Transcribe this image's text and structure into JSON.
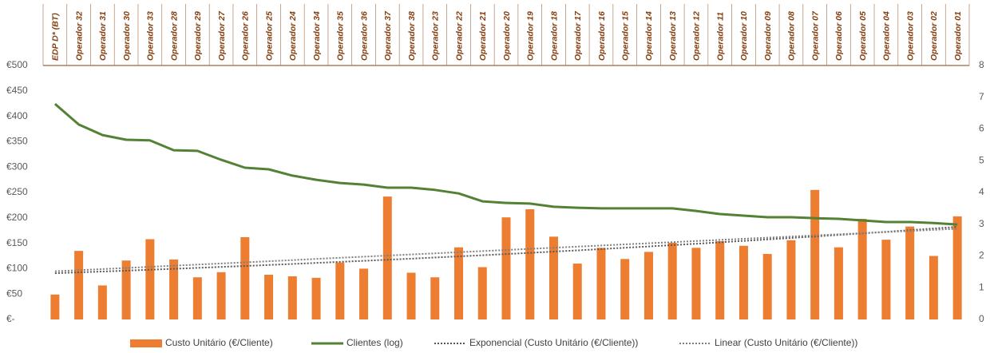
{
  "chart_data": {
    "type": "bar-line",
    "categories": [
      "EDP D* (BT)",
      "Operador 32",
      "Operador 31",
      "Operador 30",
      "Operador 33",
      "Operador 28",
      "Operador 29",
      "Operador 27",
      "Operador 26",
      "Operador 25",
      "Operador 24",
      "Operador 34",
      "Operador 35",
      "Operador 36",
      "Operador 37",
      "Operador 38",
      "Operador 23",
      "Operador 22",
      "Operador 21",
      "Operador 20",
      "Operador 19",
      "Operador 18",
      "Operador 17",
      "Operador 16",
      "Operador 15",
      "Operador 14",
      "Operador 13",
      "Operador 12",
      "Operador 11",
      "Operador 10",
      "Operador 09",
      "Operador 08",
      "Operador 07",
      "Operador 06",
      "Operador 05",
      "Operador 04",
      "Operador 03",
      "Operador 02",
      "Operador 01"
    ],
    "series": [
      {
        "name": "Custo Unitário (€/Cliente)",
        "type": "bar",
        "color": "#ed7d31",
        "values": [
          49,
          135,
          67,
          116,
          158,
          118,
          83,
          93,
          162,
          88,
          85,
          82,
          112,
          100,
          242,
          92,
          83,
          142,
          103,
          201,
          217,
          163,
          110,
          141,
          119,
          133,
          151,
          141,
          154,
          145,
          129,
          156,
          255,
          142,
          198,
          157,
          183,
          125,
          203
        ]
      },
      {
        "name": "Clientes (log)",
        "type": "line",
        "axis": "y2",
        "color": "#548235",
        "values": [
          6.79,
          6.14,
          5.81,
          5.66,
          5.64,
          5.33,
          5.31,
          5.03,
          4.78,
          4.73,
          4.53,
          4.4,
          4.3,
          4.25,
          4.15,
          4.15,
          4.08,
          3.97,
          3.72,
          3.67,
          3.65,
          3.55,
          3.52,
          3.5,
          3.5,
          3.5,
          3.5,
          3.42,
          3.32,
          3.27,
          3.22,
          3.22,
          3.19,
          3.17,
          3.12,
          3.07,
          3.07,
          3.04,
          2.99
        ]
      }
    ],
    "trendlines": [
      {
        "name": "Exponencial (Custo Unitário (€/Cliente))",
        "kind": "exponential",
        "of": 0,
        "color": "#595959"
      },
      {
        "name": "Linear (Custo Unitário (€/Cliente))",
        "kind": "linear",
        "of": 0,
        "color": "#7f7f7f"
      }
    ],
    "ylim": [
      0,
      500
    ],
    "yticks": [
      {
        "value": 0,
        "label": "€-"
      },
      {
        "value": 50,
        "label": "€50"
      },
      {
        "value": 100,
        "label": "€100"
      },
      {
        "value": 150,
        "label": "€150"
      },
      {
        "value": 200,
        "label": "€200"
      },
      {
        "value": 250,
        "label": "€250"
      },
      {
        "value": 300,
        "label": "€300"
      },
      {
        "value": 350,
        "label": "€350"
      },
      {
        "value": 400,
        "label": "€400"
      },
      {
        "value": 450,
        "label": "€450"
      },
      {
        "value": 500,
        "label": "€500"
      }
    ],
    "y2lim": [
      0,
      8
    ],
    "y2ticks": [
      0,
      1,
      2,
      3,
      4,
      5,
      6,
      7,
      8
    ],
    "legend": "bottom"
  }
}
